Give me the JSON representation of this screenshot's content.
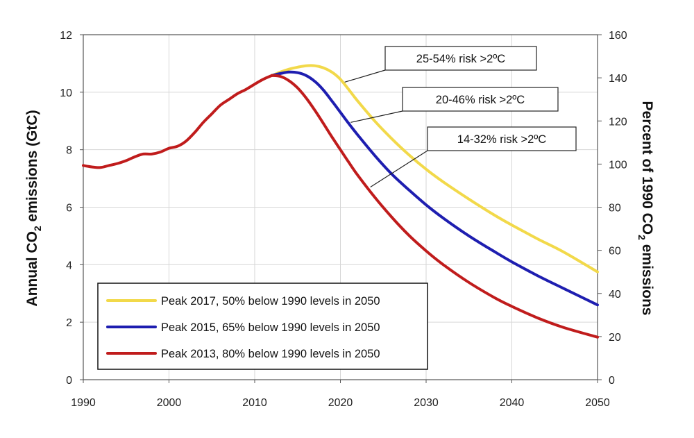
{
  "chart_data": {
    "type": "line",
    "x_range": [
      1990,
      2050
    ],
    "x_ticks": [
      1990,
      2000,
      2010,
      2020,
      2030,
      2040,
      2050
    ],
    "left_axis": {
      "label_pre": "Annual CO",
      "label_sub": "2",
      "label_post": " emissions (GtC)",
      "range": [
        0,
        12
      ],
      "ticks": [
        0,
        2,
        4,
        6,
        8,
        10,
        12
      ]
    },
    "right_axis": {
      "label_pre": "Percent of 1990 CO",
      "label_sub": "2",
      "label_post": " emissions",
      "range": [
        0,
        160
      ],
      "ticks": [
        0,
        20,
        40,
        60,
        80,
        100,
        120,
        140,
        160
      ]
    },
    "grid": true,
    "legend_position": "lower-left",
    "historical": {
      "x": [
        1990,
        1991,
        1992,
        1993,
        1994,
        1995,
        1996,
        1997,
        1998,
        1999,
        2000,
        2001,
        2002,
        2003,
        2004,
        2005,
        2006,
        2007,
        2008,
        2009,
        2010,
        2011,
        2012
      ],
      "y": [
        7.45,
        7.4,
        7.38,
        7.45,
        7.52,
        7.62,
        7.75,
        7.85,
        7.85,
        7.92,
        8.05,
        8.12,
        8.3,
        8.6,
        8.95,
        9.25,
        9.55,
        9.75,
        9.95,
        10.1,
        10.28,
        10.45,
        10.58
      ]
    },
    "series": [
      {
        "name": "Peak 2017, 50% below 1990 levels in 2050",
        "color": "#f2d94a",
        "x": [
          2012,
          2013,
          2014,
          2015,
          2016,
          2017,
          2018,
          2019,
          2020,
          2021,
          2022,
          2024,
          2026,
          2028,
          2030,
          2032,
          2035,
          2038,
          2040,
          2043,
          2046,
          2050
        ],
        "y": [
          10.58,
          10.7,
          10.8,
          10.87,
          10.92,
          10.92,
          10.85,
          10.7,
          10.45,
          10.08,
          9.7,
          9.0,
          8.38,
          7.82,
          7.32,
          6.88,
          6.28,
          5.72,
          5.38,
          4.9,
          4.45,
          3.75
        ]
      },
      {
        "name": "Peak 2015, 65% below 1990 levels in 2050",
        "color": "#1e1eb0",
        "x": [
          2012,
          2013,
          2014,
          2015,
          2016,
          2017,
          2018,
          2019,
          2020,
          2021,
          2022,
          2024,
          2026,
          2028,
          2030,
          2032,
          2035,
          2038,
          2040,
          2043,
          2046,
          2050
        ],
        "y": [
          10.58,
          10.65,
          10.7,
          10.68,
          10.58,
          10.38,
          10.08,
          9.7,
          9.3,
          8.9,
          8.52,
          7.8,
          7.15,
          6.6,
          6.08,
          5.62,
          5.0,
          4.45,
          4.1,
          3.62,
          3.18,
          2.6
        ]
      },
      {
        "name": "Peak 2013, 80% below 1990 levels in 2050",
        "color": "#c01c1c",
        "x": [
          2012,
          2013,
          2014,
          2015,
          2016,
          2017,
          2018,
          2019,
          2020,
          2021,
          2022,
          2024,
          2026,
          2028,
          2030,
          2032,
          2035,
          2038,
          2040,
          2043,
          2046,
          2050
        ],
        "y": [
          10.58,
          10.55,
          10.4,
          10.15,
          9.8,
          9.38,
          8.92,
          8.45,
          8.0,
          7.55,
          7.12,
          6.35,
          5.65,
          5.02,
          4.48,
          4.0,
          3.38,
          2.85,
          2.55,
          2.15,
          1.82,
          1.48
        ]
      }
    ],
    "annotations": [
      {
        "text": "25-54% risk >2ºC",
        "series": 0,
        "point": [
          2020.5,
          10.35
        ]
      },
      {
        "text": "20-46% risk >2ºC",
        "series": 1,
        "point": [
          2021.2,
          8.95
        ]
      },
      {
        "text": "14-32% risk >2ºC",
        "series": 2,
        "point": [
          2023.5,
          6.7
        ]
      }
    ]
  }
}
